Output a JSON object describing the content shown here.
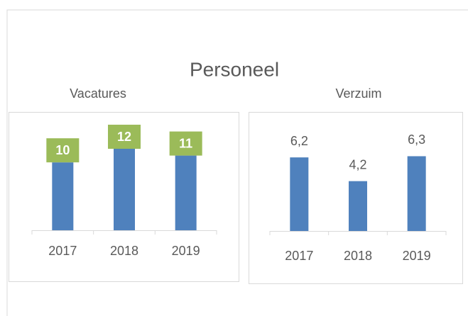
{
  "title": "Personeel",
  "chart_data": [
    {
      "type": "bar",
      "title": "Vacatures",
      "categories": [
        "2017",
        "2018",
        "2019"
      ],
      "values": [
        10,
        12,
        11
      ],
      "color": "#4f81bd",
      "label_box_color": "#9bbb59",
      "ylim": [
        0,
        12
      ]
    },
    {
      "type": "bar",
      "title": "Verzuim",
      "categories": [
        "2017",
        "2018",
        "2019"
      ],
      "values": [
        6.2,
        4.2,
        6.3
      ],
      "value_labels": [
        "6,2",
        "4,2",
        "6,3"
      ],
      "color": "#4f81bd",
      "ylim": [
        0,
        8
      ]
    }
  ]
}
